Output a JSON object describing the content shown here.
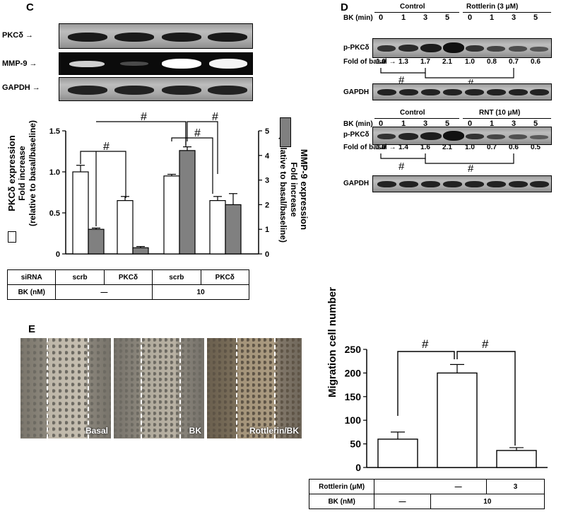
{
  "panel_c": {
    "letter": "C",
    "blot_labels": [
      "PKCδ",
      "MMP-9",
      "GAPDH"
    ],
    "ylabel_left_line1": "PKCδ expression",
    "ylabel_left_line2": "Fold increase",
    "ylabel_left_line3": "(relative to basal/baseline)",
    "ylabel_right_line1": "MMP-9 expression",
    "ylabel_right_line2": "Fold increase",
    "ylabel_right_line3": "(relative to basal/baseline)",
    "sig": "#",
    "table": {
      "row1_label": "siRNA",
      "row1_values": [
        "scrb",
        "PKCδ",
        "scrb",
        "PKCδ"
      ],
      "row2_label": "BK (nM)",
      "row2_values": [
        "—",
        "10"
      ]
    }
  },
  "panel_d": {
    "letter": "D",
    "top": {
      "group1": "Control",
      "group2": "Rottlerin (3 μM)",
      "bk_label": "BK (min)",
      "times": [
        "0",
        "1",
        "3",
        "5",
        "0",
        "1",
        "3",
        "5"
      ],
      "blot_label": "p-PKCδ",
      "fold_label": "Fold of basal",
      "folds": [
        "1.0",
        "1.3",
        "1.7",
        "2.1",
        "1.0",
        "0.8",
        "0.7",
        "0.6"
      ],
      "gapdh_label": "GAPDH",
      "sig": "#"
    },
    "bottom": {
      "group1": "Control",
      "group2": "RNT (10 μM)",
      "bk_label": "BK (min)",
      "times": [
        "0",
        "1",
        "3",
        "5",
        "0",
        "1",
        "3",
        "5"
      ],
      "blot_label": "p-PKCδ",
      "fold_label": "Fold of basal",
      "folds": [
        "1.0",
        "1.4",
        "1.6",
        "2.1",
        "1.0",
        "0.7",
        "0.6",
        "0.5"
      ],
      "gapdh_label": "GAPDH",
      "sig": "#"
    }
  },
  "panel_e": {
    "letter": "E",
    "image_labels": [
      "Basal",
      "BK",
      "Rottlerin/BK"
    ],
    "sig": "#",
    "table": {
      "row1_label": "Rottlerin (μM)",
      "row1_values": [
        "—",
        "3"
      ],
      "row2_label": "BK (nM)",
      "row2_values": [
        "—",
        "10"
      ]
    }
  },
  "chart_data": [
    {
      "type": "bar",
      "categories": [
        "scrb / —",
        "PKCδ / —",
        "scrb / 10",
        "PKCδ / 10"
      ],
      "series": [
        {
          "name": "PKCδ expression",
          "values": [
            1.0,
            0.65,
            0.95,
            0.65
          ],
          "errors": [
            0.08,
            0.05,
            0.02,
            0.05
          ],
          "color": "#ffffff",
          "axis": "left"
        },
        {
          "name": "MMP-9 expression",
          "values": [
            1.0,
            0.25,
            4.2,
            2.0
          ],
          "errors": [
            0.05,
            0.05,
            0.15,
            0.45
          ],
          "color": "#808080",
          "axis": "right"
        }
      ],
      "y_left_ticks": [
        "0",
        "0.5",
        "1.0",
        "1.5"
      ],
      "y_right_ticks": [
        "0",
        "1",
        "2",
        "3",
        "4",
        "5"
      ],
      "ylim_left": [
        0,
        1.5
      ],
      "ylim_right": [
        0,
        5
      ]
    },
    {
      "type": "bar",
      "categories": [
        "Basal",
        "BK",
        "Rottlerin/BK"
      ],
      "values": [
        60,
        200,
        36
      ],
      "errors": [
        15,
        18,
        6
      ],
      "ylabel": "Migration cell number",
      "y_ticks": [
        "0",
        "50",
        "100",
        "150",
        "200",
        "250"
      ],
      "ylim": [
        0,
        250
      ]
    }
  ]
}
